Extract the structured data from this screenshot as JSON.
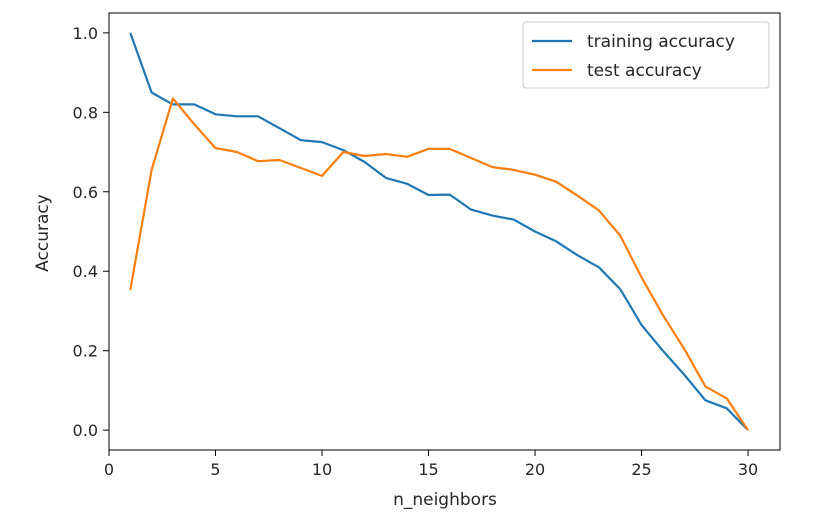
{
  "chart_data": {
    "type": "line",
    "title": "",
    "xlabel": "n_neighbors",
    "ylabel": "Accuracy",
    "xlim": [
      0,
      31.5
    ],
    "ylim": [
      -0.05,
      1.05
    ],
    "xticks": [
      0,
      5,
      10,
      15,
      20,
      25,
      30
    ],
    "yticks": [
      0.0,
      0.2,
      0.4,
      0.6,
      0.8,
      1.0
    ],
    "xtick_labels": [
      "0",
      "5",
      "10",
      "15",
      "20",
      "25",
      "30"
    ],
    "ytick_labels": [
      "0.0",
      "0.2",
      "0.4",
      "0.6",
      "0.8",
      "1.0"
    ],
    "grid": false,
    "legend_position": "upper right",
    "x": [
      1,
      2,
      3,
      4,
      5,
      6,
      7,
      8,
      9,
      10,
      11,
      12,
      13,
      14,
      15,
      16,
      17,
      18,
      19,
      20,
      21,
      22,
      23,
      24,
      25,
      26,
      27,
      28,
      29,
      30
    ],
    "series": [
      {
        "name": "training accuracy",
        "color": "#1f77b4",
        "values": [
          1.0,
          0.85,
          0.82,
          0.82,
          0.795,
          0.79,
          0.79,
          0.76,
          0.73,
          0.725,
          0.705,
          0.675,
          0.635,
          0.62,
          0.592,
          0.593,
          0.555,
          0.54,
          0.53,
          0.5,
          0.475,
          0.44,
          0.41,
          0.355,
          0.265,
          0.2,
          0.14,
          0.075,
          0.055,
          0.0
        ]
      },
      {
        "name": "test accuracy",
        "color": "#ff7f0e",
        "values": [
          0.353,
          0.655,
          0.835,
          0.77,
          0.71,
          0.7,
          0.677,
          0.68,
          0.66,
          0.64,
          0.7,
          0.69,
          0.695,
          0.688,
          0.708,
          0.708,
          0.685,
          0.662,
          0.655,
          0.643,
          0.625,
          0.59,
          0.553,
          0.49,
          0.385,
          0.29,
          0.205,
          0.11,
          0.08,
          0.0
        ]
      }
    ]
  }
}
